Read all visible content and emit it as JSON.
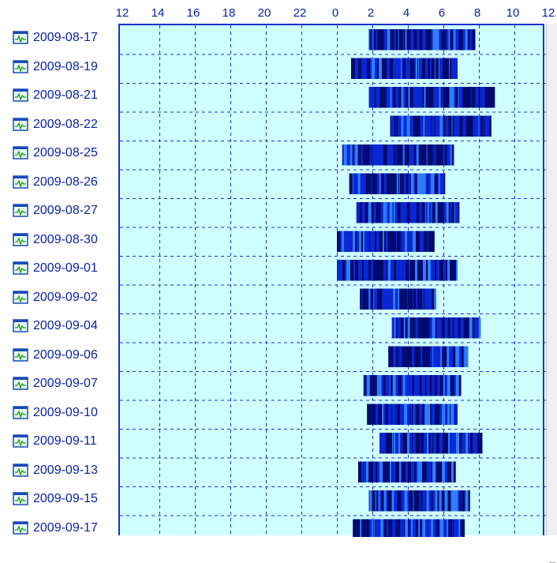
{
  "axis": {
    "hour_labels": [
      "12",
      "14",
      "16",
      "18",
      "20",
      "22",
      "0",
      "2",
      "4",
      "6",
      "8",
      "10",
      "12"
    ]
  },
  "rows": [
    {
      "date": "2009-08-17",
      "start": 1.8,
      "end": 7.8
    },
    {
      "date": "2009-08-19",
      "start": 0.8,
      "end": 6.8
    },
    {
      "date": "2009-08-21",
      "start": 1.8,
      "end": 8.9
    },
    {
      "date": "2009-08-22",
      "start": 3.0,
      "end": 8.7
    },
    {
      "date": "2009-08-25",
      "start": 0.3,
      "end": 6.6
    },
    {
      "date": "2009-08-26",
      "start": 0.7,
      "end": 6.1
    },
    {
      "date": "2009-08-27",
      "start": 1.1,
      "end": 6.9
    },
    {
      "date": "2009-08-30",
      "start": 0.0,
      "end": 5.5
    },
    {
      "date": "2009-09-01",
      "start": 0.0,
      "end": 6.8
    },
    {
      "date": "2009-09-02",
      "start": 1.3,
      "end": 5.6
    },
    {
      "date": "2009-09-04",
      "start": 3.1,
      "end": 8.1
    },
    {
      "date": "2009-09-06",
      "start": 2.9,
      "end": 7.4
    },
    {
      "date": "2009-09-07",
      "start": 1.5,
      "end": 7.0
    },
    {
      "date": "2009-09-10",
      "start": 1.7,
      "end": 6.8
    },
    {
      "date": "2009-09-11",
      "start": 2.4,
      "end": 8.2
    },
    {
      "date": "2009-09-13",
      "start": 1.2,
      "end": 6.7
    },
    {
      "date": "2009-09-15",
      "start": 1.8,
      "end": 7.5
    },
    {
      "date": "2009-09-17",
      "start": 0.9,
      "end": 7.2
    }
  ],
  "colors": {
    "plot_bg": "#cfffff",
    "grid": "#1a32c8",
    "label": "#0a1ea8",
    "bar_dark": "#000a6e",
    "bar_mid": "#0a28d2",
    "bar_light": "#2f7dff"
  },
  "icons": {
    "row": "chart-monitor-icon"
  }
}
